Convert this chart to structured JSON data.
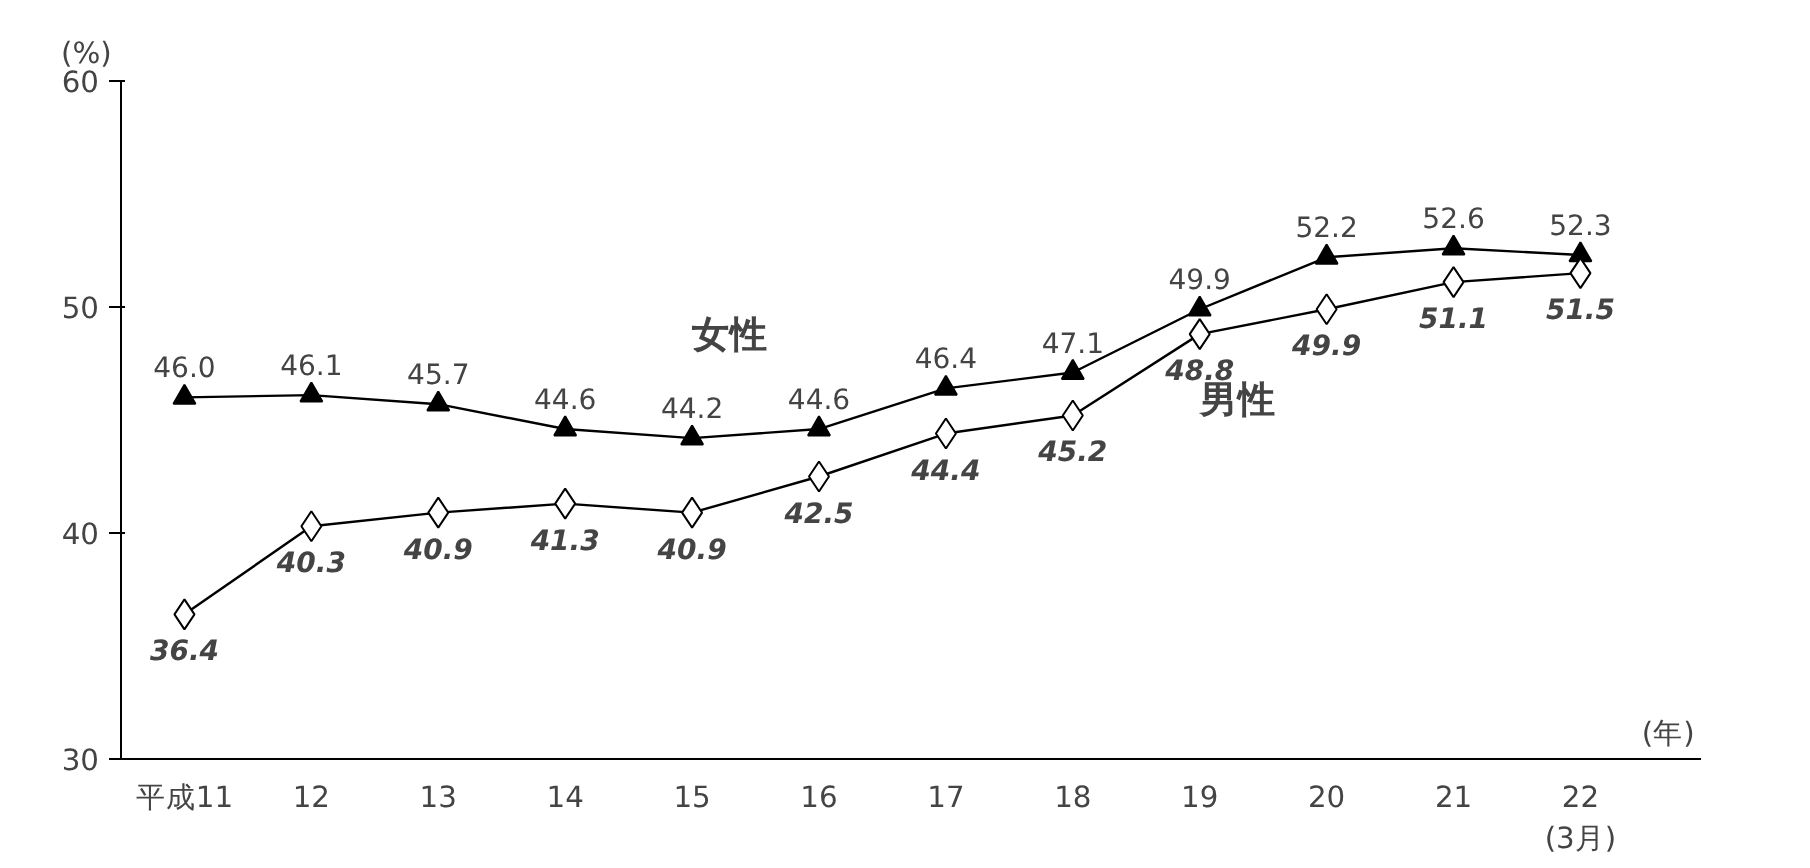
{
  "chart_data": {
    "type": "line",
    "xlabel": "(年)",
    "ylabel": "(%)",
    "categories": [
      "平成11",
      "12",
      "13",
      "14",
      "15",
      "16",
      "17",
      "18",
      "19",
      "20",
      "21",
      "22\n(3月)"
    ],
    "series": [
      {
        "name": "女性",
        "color": "#000000",
        "marker": "triangle",
        "values": [
          46.0,
          46.1,
          45.7,
          44.6,
          44.2,
          44.6,
          46.4,
          47.1,
          49.9,
          52.2,
          52.6,
          52.3
        ],
        "value_labels": [
          "46.0",
          "46.1",
          "45.7",
          "44.6",
          "44.2",
          "44.6",
          "46.4",
          "47.1",
          "49.9",
          "52.2",
          "52.6",
          "52.3"
        ]
      },
      {
        "name": "男性",
        "color": "#000000",
        "marker": "diamond",
        "values": [
          36.4,
          40.3,
          40.9,
          41.3,
          40.9,
          42.5,
          44.4,
          45.2,
          48.8,
          49.9,
          51.1,
          51.5
        ],
        "value_labels": [
          "36.4",
          "40.3",
          "40.9",
          "41.3",
          "40.9",
          "42.5",
          "44.4",
          "45.2",
          "48.8",
          "49.9",
          "51.1",
          "51.5"
        ]
      }
    ],
    "ylim": [
      30,
      60
    ],
    "yticks": [
      30,
      40,
      50,
      60
    ],
    "grid": false,
    "legend": false,
    "line_style": "solid"
  }
}
